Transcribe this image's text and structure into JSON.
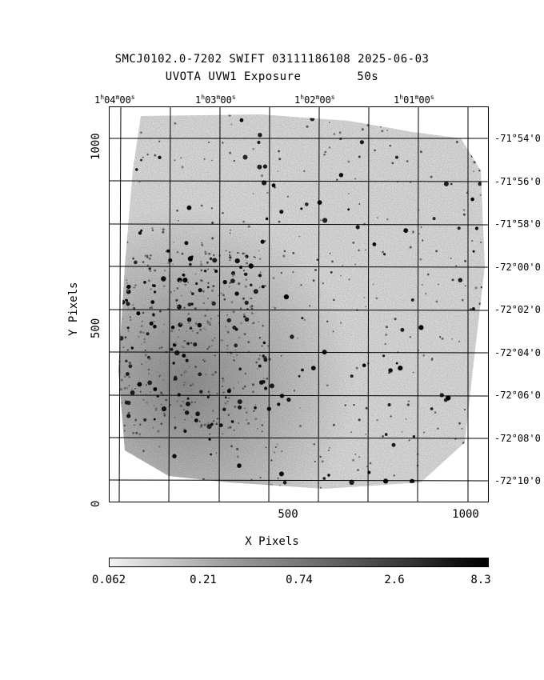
{
  "header": {
    "line1": "SMCJ0102.0-7202 SWIFT 03111186108 2025-06-03",
    "line2_left": "UVOTA UVW1 Exposure",
    "line2_right": "50s"
  },
  "axes": {
    "xlabel": "X Pixels",
    "ylabel": "Y Pixels",
    "x_ticks": [
      "500",
      "1000"
    ],
    "y_ticks": [
      "0",
      "500",
      "1000"
    ],
    "ra_ticks": [
      {
        "h": "1",
        "m": "04",
        "s": "00"
      },
      {
        "h": "1",
        "m": "03",
        "s": "00"
      },
      {
        "h": "1",
        "m": "02",
        "s": "00"
      },
      {
        "h": "1",
        "m": "01",
        "s": "00"
      }
    ],
    "dec_ticks": [
      "-71°54'0",
      "-71°56'0",
      "-71°58'0",
      "-72°00'0",
      "-72°02'0",
      "-72°04'0",
      "-72°06'0",
      "-72°08'0",
      "-72°10'0"
    ]
  },
  "colorbar": {
    "ticks": [
      "0.062",
      "0.21",
      "0.74",
      "2.6",
      "8.3"
    ],
    "scale": "log",
    "colormap": "grayscale"
  },
  "image": {
    "description_colors": {
      "background": "#ffffff",
      "foreground": "#000000"
    }
  }
}
